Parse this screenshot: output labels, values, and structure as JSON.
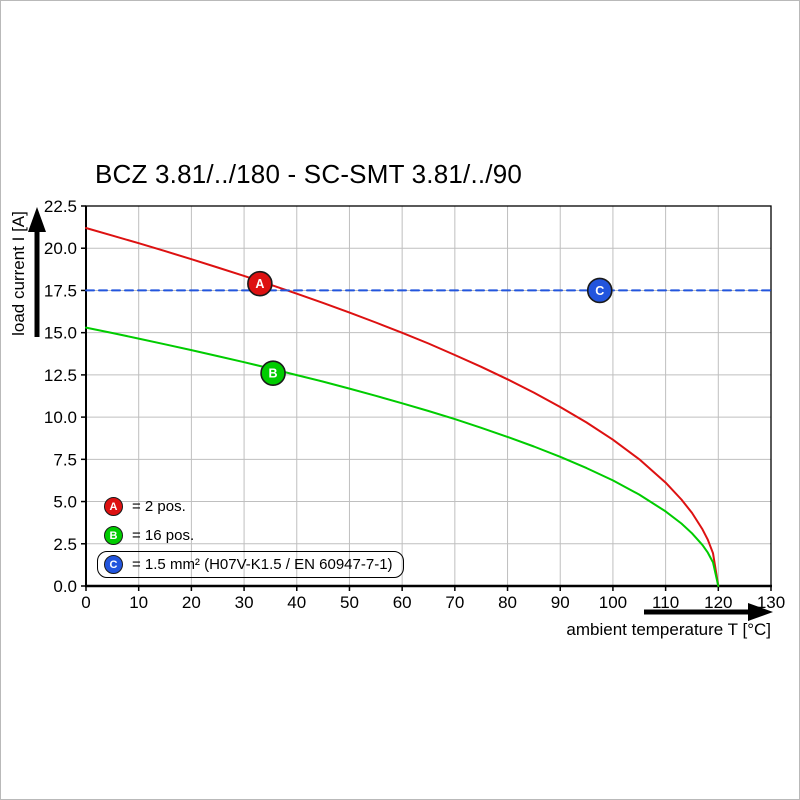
{
  "chart_data": {
    "type": "line",
    "title": "BCZ 3.81/../180 - SC-SMT 3.81/../90",
    "xlabel": "ambient temperature T [°C]",
    "ylabel": "load current I [A]",
    "xlim": [
      0,
      130
    ],
    "ylim": [
      0,
      22.5
    ],
    "xticks": [
      0,
      10,
      20,
      30,
      40,
      50,
      60,
      70,
      80,
      90,
      100,
      110,
      120,
      130
    ],
    "xtick_labels": [
      "0",
      "10",
      "20",
      "30",
      "40",
      "50",
      "60",
      "70",
      "80",
      "90",
      "100",
      "110",
      "120",
      "130"
    ],
    "yticks": [
      0,
      2.5,
      5,
      7.5,
      10,
      12.5,
      15,
      17.5,
      20,
      22.5
    ],
    "ytick_labels": [
      "0.0",
      "2.5",
      "5.0",
      "7.5",
      "10.0",
      "12.5",
      "15.0",
      "17.5",
      "20.0",
      "22.5"
    ],
    "grid": true,
    "grid_color": "#bfbfbf",
    "series": [
      {
        "name": "A",
        "legend": "= 2 pos.",
        "color": "#dd1111",
        "dashed": false,
        "x": [
          0,
          5,
          10,
          15,
          20,
          25,
          30,
          35,
          40,
          45,
          50,
          55,
          60,
          65,
          70,
          75,
          80,
          85,
          90,
          95,
          100,
          105,
          110,
          113,
          115,
          117,
          118,
          119,
          120
        ],
        "y": [
          21.2,
          20.75,
          20.3,
          19.83,
          19.35,
          18.86,
          18.36,
          17.84,
          17.31,
          16.76,
          16.19,
          15.6,
          14.99,
          14.36,
          13.68,
          12.98,
          12.24,
          11.45,
          10.6,
          9.68,
          8.66,
          7.5,
          6.12,
          5.12,
          4.33,
          3.35,
          2.74,
          1.94,
          0
        ]
      },
      {
        "name": "B",
        "legend": "= 16 pos.",
        "color": "#00cc00",
        "dashed": false,
        "x": [
          0,
          5,
          10,
          15,
          20,
          25,
          30,
          35,
          40,
          45,
          50,
          55,
          60,
          65,
          70,
          75,
          80,
          85,
          90,
          95,
          100,
          105,
          110,
          113,
          115,
          117,
          118,
          119,
          120
        ],
        "y": [
          15.3,
          14.98,
          14.65,
          14.31,
          13.97,
          13.61,
          13.25,
          12.88,
          12.49,
          12.1,
          11.69,
          11.26,
          10.82,
          10.36,
          9.88,
          9.37,
          8.83,
          8.26,
          7.65,
          6.98,
          6.25,
          5.41,
          4.42,
          3.7,
          3.12,
          2.42,
          1.98,
          1.4,
          0
        ]
      },
      {
        "name": "C",
        "legend": "= 1.5 mm² (H07V-K1.5 / EN 60947-7-1)",
        "color": "#2255dd",
        "dashed": true,
        "x": [
          0,
          130
        ],
        "y": [
          17.5,
          17.5
        ]
      }
    ],
    "markers": [
      {
        "label": "A",
        "x": 33,
        "y": 17.9,
        "color": "#dd1111"
      },
      {
        "label": "B",
        "x": 35.5,
        "y": 12.6,
        "color": "#00cc00"
      },
      {
        "label": "C",
        "x": 97.5,
        "y": 17.5,
        "color": "#2255dd"
      }
    ],
    "legend_position": "lower-left"
  },
  "legend": {
    "items": [
      {
        "marker": "A",
        "text": "= 2 pos.",
        "color": "#dd1111",
        "boxed": false
      },
      {
        "marker": "B",
        "text": "= 16 pos.",
        "color": "#00cc00",
        "boxed": false
      },
      {
        "marker": "C",
        "text": "= 1.5 mm² (H07V-K1.5 / EN 60947-7-1)",
        "color": "#2255dd",
        "boxed": true
      }
    ]
  }
}
